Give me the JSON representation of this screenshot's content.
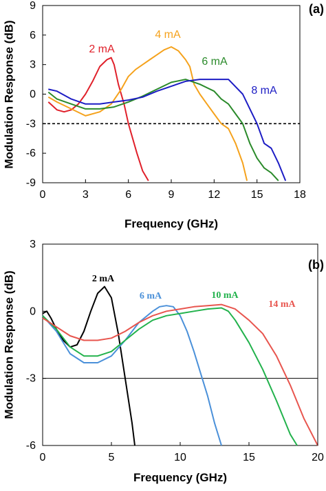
{
  "chart_data": [
    {
      "type": "line",
      "panel_label": "(a)",
      "xlabel": "Frequency (GHz)",
      "ylabel": "Modulation Response (dB)",
      "xlim": [
        0,
        18
      ],
      "ylim": [
        -9,
        9
      ],
      "xticks": [
        0,
        3,
        6,
        9,
        12,
        15,
        18
      ],
      "yticks": [
        -9,
        -6,
        -3,
        0,
        3,
        6,
        9
      ],
      "grid": false,
      "reference_line": {
        "y": -3,
        "style": "dashed"
      },
      "series": [
        {
          "name": "2 mA",
          "color": "#e0202a",
          "x": [
            0.4,
            1.0,
            1.5,
            2.0,
            2.5,
            3.0,
            3.5,
            4.0,
            4.5,
            4.8,
            5.0,
            5.3,
            5.7,
            6.0,
            6.3,
            6.6,
            7.0,
            7.4
          ],
          "y": [
            -0.8,
            -1.6,
            -1.8,
            -1.6,
            -1.0,
            0.0,
            1.3,
            2.8,
            3.5,
            3.7,
            3.0,
            1.0,
            -1.0,
            -3.0,
            -4.5,
            -6.0,
            -7.8,
            -8.8
          ]
        },
        {
          "name": "4 mA",
          "color": "#f5a21c",
          "x": [
            0.4,
            1.0,
            2.0,
            3.0,
            4.0,
            4.8,
            5.5,
            6.0,
            6.5,
            7.0,
            7.5,
            8.0,
            8.5,
            9.0,
            9.5,
            10.0,
            10.3,
            10.6,
            11.0,
            11.5,
            12.0,
            12.5,
            13.0,
            13.5,
            14.0,
            14.3
          ],
          "y": [
            -0.3,
            -0.8,
            -1.5,
            -2.2,
            -1.8,
            -1.0,
            0.5,
            1.8,
            2.5,
            3.0,
            3.5,
            4.0,
            4.5,
            4.8,
            4.4,
            3.5,
            2.8,
            1.0,
            0.0,
            -1.0,
            -2.0,
            -3.0,
            -3.5,
            -5.0,
            -7.0,
            -8.8
          ]
        },
        {
          "name": "6 mA",
          "color": "#2a8a2a",
          "x": [
            0.4,
            1.0,
            2.0,
            3.0,
            4.0,
            5.0,
            6.0,
            7.0,
            8.0,
            9.0,
            10.0,
            11.0,
            12.0,
            12.5,
            13.0,
            13.5,
            14.0,
            14.5,
            15.0,
            15.5,
            16.0,
            16.5
          ],
          "y": [
            0.2,
            -0.5,
            -1.0,
            -1.5,
            -1.5,
            -1.3,
            -0.8,
            -0.2,
            0.5,
            1.2,
            1.5,
            1.0,
            0.3,
            -0.5,
            -1.0,
            -2.0,
            -3.0,
            -5.0,
            -6.5,
            -7.5,
            -8.0,
            -8.8
          ]
        },
        {
          "name": "8 mA",
          "color": "#1c1cc4",
          "x": [
            0.4,
            1.0,
            2.0,
            3.0,
            4.0,
            5.0,
            6.0,
            7.0,
            8.0,
            9.0,
            10.0,
            11.0,
            12.0,
            13.0,
            14.0,
            14.5,
            15.0,
            15.5,
            16.0,
            16.5,
            17.0
          ],
          "y": [
            0.5,
            0.3,
            -0.5,
            -1.0,
            -1.0,
            -0.8,
            -0.6,
            -0.3,
            0.3,
            0.8,
            1.3,
            1.5,
            1.5,
            1.5,
            0.0,
            -1.5,
            -3.0,
            -5.0,
            -5.5,
            -7.0,
            -8.8
          ]
        }
      ]
    },
    {
      "type": "line",
      "panel_label": "(b)",
      "xlabel": "Frequency (GHz)",
      "ylabel": "Modulation Response (dB)",
      "xlim": [
        0,
        20
      ],
      "ylim": [
        -6,
        3
      ],
      "xticks": [
        0,
        5,
        10,
        15,
        20
      ],
      "yticks": [
        -6,
        -3,
        0,
        3
      ],
      "grid": false,
      "reference_line": {
        "y": -3,
        "style": "solid"
      },
      "series": [
        {
          "name": "2 mA",
          "color": "#000000",
          "x": [
            0.0,
            0.3,
            0.6,
            1.0,
            1.5,
            2.0,
            2.5,
            3.0,
            3.5,
            4.0,
            4.5,
            5.0,
            5.5,
            6.0,
            6.5,
            6.7
          ],
          "y": [
            -0.1,
            0.0,
            -0.3,
            -0.8,
            -1.3,
            -1.6,
            -1.5,
            -0.9,
            0.0,
            0.8,
            1.1,
            0.6,
            -1.0,
            -3.0,
            -5.0,
            -6.0
          ]
        },
        {
          "name": "6 mA",
          "color": "#4a90d9",
          "x": [
            0.0,
            1.0,
            2.0,
            3.0,
            4.0,
            5.0,
            6.0,
            7.0,
            8.0,
            8.5,
            9.0,
            9.5,
            10.0,
            10.5,
            11.0,
            11.5,
            12.0,
            12.5,
            13.0
          ],
          "y": [
            -0.2,
            -0.9,
            -1.9,
            -2.3,
            -2.3,
            -2.0,
            -1.3,
            -0.5,
            0.0,
            0.2,
            0.25,
            0.2,
            -0.2,
            -0.9,
            -1.8,
            -2.8,
            -3.8,
            -5.0,
            -6.0
          ]
        },
        {
          "name": "10 mA",
          "color": "#22b24c",
          "x": [
            0.0,
            1.0,
            2.0,
            3.0,
            4.0,
            5.0,
            6.0,
            7.0,
            8.0,
            9.0,
            10.0,
            11.0,
            12.0,
            13.0,
            13.5,
            14.0,
            15.0,
            16.0,
            17.0,
            18.0,
            18.5
          ],
          "y": [
            -0.2,
            -0.8,
            -1.6,
            -2.0,
            -2.0,
            -1.8,
            -1.3,
            -0.8,
            -0.4,
            -0.2,
            -0.1,
            0.0,
            0.1,
            0.15,
            0.0,
            -0.4,
            -1.4,
            -2.6,
            -4.0,
            -5.5,
            -6.0
          ]
        },
        {
          "name": "14 mA",
          "color": "#e8554e",
          "x": [
            0.0,
            1.0,
            2.0,
            3.0,
            4.0,
            5.0,
            6.0,
            7.0,
            8.0,
            9.0,
            10.0,
            11.0,
            12.0,
            13.0,
            14.0,
            15.0,
            16.0,
            17.0,
            18.0,
            19.0,
            20.0
          ],
          "y": [
            -0.3,
            -0.7,
            -1.1,
            -1.3,
            -1.3,
            -1.2,
            -0.9,
            -0.5,
            -0.2,
            0.0,
            0.1,
            0.2,
            0.25,
            0.3,
            0.1,
            -0.4,
            -1.0,
            -2.0,
            -3.3,
            -4.8,
            -6.0
          ]
        }
      ]
    }
  ]
}
